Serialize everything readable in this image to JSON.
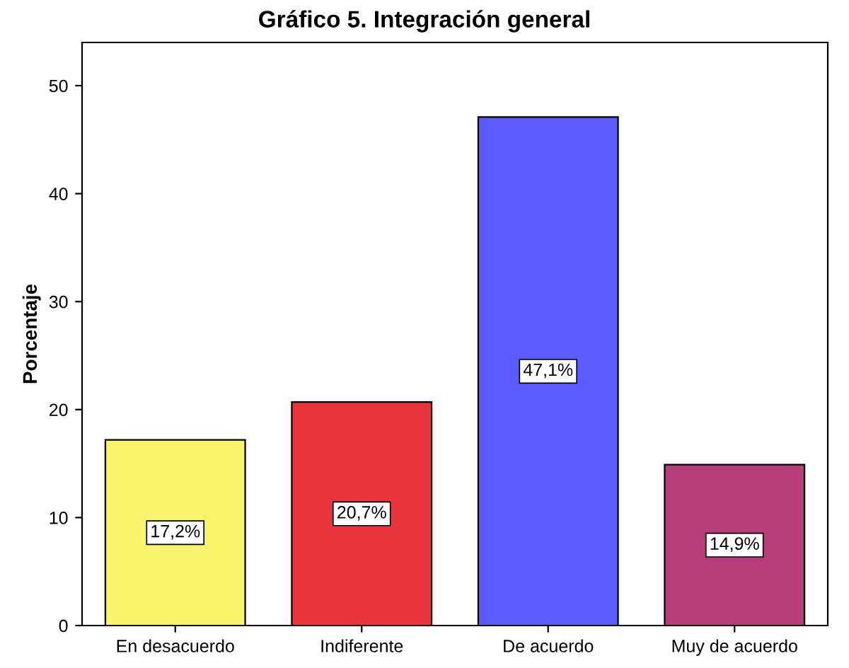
{
  "chart_data": {
    "type": "bar",
    "title": "Gráfico 5. Integración general",
    "ylabel": "Porcentaje",
    "categories": [
      "En desacuerdo",
      "Indiferente",
      "De acuerdo",
      "Muy de acuerdo"
    ],
    "values": [
      17.2,
      20.7,
      47.1,
      14.9
    ],
    "value_labels": [
      "17,2%",
      "20,7%",
      "47,1%",
      "14,9%"
    ],
    "colors": [
      "#f8f46c",
      "#e8343c",
      "#5a5cfe",
      "#b63c7a"
    ],
    "ylim": [
      0,
      54
    ],
    "yticks": [
      0,
      10,
      20,
      30,
      40,
      50
    ],
    "grid": false
  }
}
